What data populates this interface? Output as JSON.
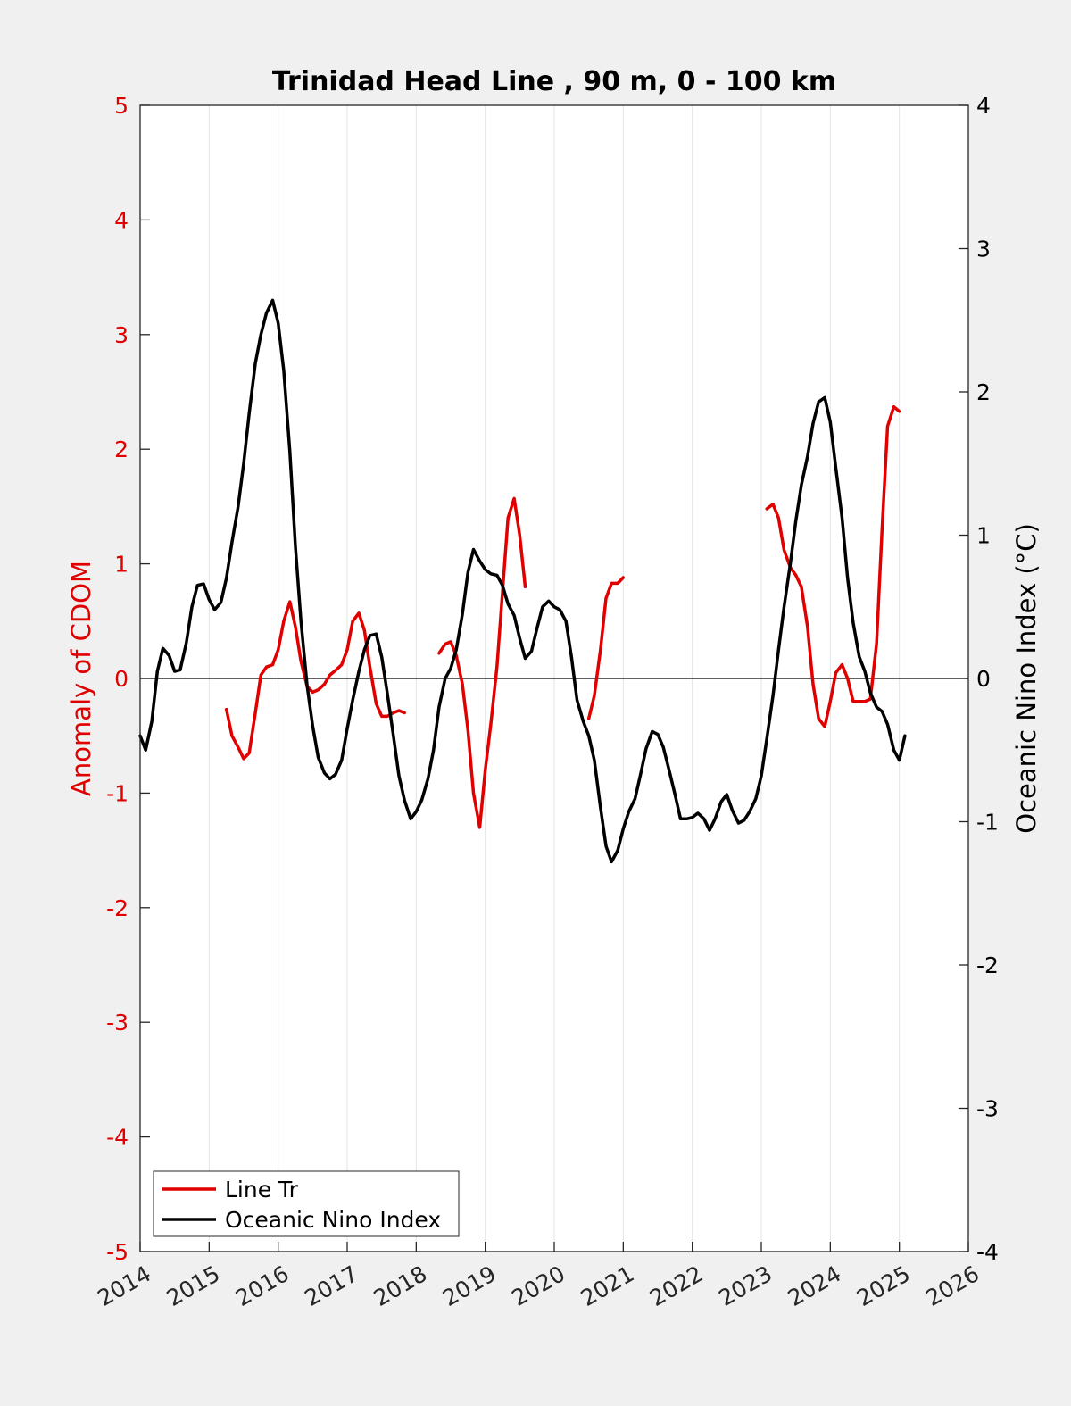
{
  "chart_data": {
    "type": "line",
    "title": "Trinidad Head Line , 90 m, 0 - 100 km",
    "ylabel_left": "Anomaly of CDOM",
    "ylabel_right": "Oceanic Nino Index (°C)",
    "xlim": [
      2014,
      2026
    ],
    "ylim_left": [
      -5,
      5
    ],
    "ylim_right": [
      -4,
      4
    ],
    "x_ticks": [
      "2014",
      "2015",
      "2016",
      "2017",
      "2018",
      "2019",
      "2020",
      "2021",
      "2022",
      "2023",
      "2024",
      "2025",
      "2026"
    ],
    "y_left_ticks": [
      "-5",
      "-4",
      "-3",
      "-2",
      "-1",
      "0",
      "1",
      "2",
      "3",
      "4",
      "5"
    ],
    "y_right_ticks": [
      "-4",
      "-3",
      "-2",
      "-1",
      "0",
      "1",
      "2",
      "3",
      "4"
    ],
    "grid": "vertical",
    "zero_line": true,
    "legend_position": "bottom-left",
    "colors": {
      "line_tr": "#e00000",
      "oni": "#000000",
      "left_axis": "#e00000",
      "right_axis": "#000000"
    },
    "series": [
      {
        "name": "Line Tr",
        "axis": "left",
        "segments": [
          [
            [
              2015.25,
              -0.27
            ],
            [
              2015.33,
              -0.5
            ],
            [
              2015.42,
              -0.6
            ],
            [
              2015.5,
              -0.7
            ],
            [
              2015.58,
              -0.65
            ],
            [
              2015.67,
              -0.3
            ],
            [
              2015.75,
              0.03
            ],
            [
              2015.83,
              0.1
            ],
            [
              2015.92,
              0.12
            ],
            [
              2016.0,
              0.25
            ],
            [
              2016.08,
              0.5
            ],
            [
              2016.17,
              0.67
            ],
            [
              2016.25,
              0.45
            ],
            [
              2016.33,
              0.15
            ],
            [
              2016.42,
              -0.07
            ],
            [
              2016.5,
              -0.12
            ],
            [
              2016.58,
              -0.1
            ],
            [
              2016.67,
              -0.05
            ],
            [
              2016.75,
              0.03
            ],
            [
              2016.83,
              0.07
            ],
            [
              2016.92,
              0.12
            ],
            [
              2017.0,
              0.25
            ],
            [
              2017.08,
              0.5
            ],
            [
              2017.17,
              0.57
            ],
            [
              2017.25,
              0.42
            ],
            [
              2017.33,
              0.1
            ],
            [
              2017.42,
              -0.22
            ],
            [
              2017.5,
              -0.33
            ],
            [
              2017.58,
              -0.33
            ],
            [
              2017.67,
              -0.3
            ],
            [
              2017.75,
              -0.28
            ],
            [
              2017.83,
              -0.3
            ]
          ],
          [
            [
              2018.33,
              0.22
            ],
            [
              2018.42,
              0.3
            ],
            [
              2018.5,
              0.32
            ],
            [
              2018.58,
              0.2
            ],
            [
              2018.67,
              -0.05
            ],
            [
              2018.75,
              -0.45
            ],
            [
              2018.83,
              -1.0
            ],
            [
              2018.92,
              -1.3
            ],
            [
              2019.0,
              -0.8
            ],
            [
              2019.08,
              -0.4
            ],
            [
              2019.17,
              0.1
            ],
            [
              2019.25,
              0.75
            ],
            [
              2019.33,
              1.4
            ],
            [
              2019.42,
              1.57
            ],
            [
              2019.5,
              1.25
            ],
            [
              2019.58,
              0.8
            ]
          ],
          [
            [
              2020.5,
              -0.35
            ],
            [
              2020.58,
              -0.15
            ],
            [
              2020.67,
              0.25
            ],
            [
              2020.75,
              0.7
            ],
            [
              2020.83,
              0.83
            ],
            [
              2020.92,
              0.83
            ],
            [
              2021.0,
              0.88
            ]
          ],
          [
            [
              2023.08,
              1.48
            ],
            [
              2023.17,
              1.52
            ],
            [
              2023.25,
              1.4
            ],
            [
              2023.33,
              1.12
            ],
            [
              2023.42,
              0.97
            ],
            [
              2023.5,
              0.9
            ],
            [
              2023.58,
              0.8
            ],
            [
              2023.67,
              0.45
            ],
            [
              2023.75,
              -0.05
            ],
            [
              2023.83,
              -0.35
            ],
            [
              2023.92,
              -0.42
            ],
            [
              2024.0,
              -0.2
            ],
            [
              2024.08,
              0.05
            ],
            [
              2024.17,
              0.12
            ],
            [
              2024.25,
              0.0
            ],
            [
              2024.33,
              -0.2
            ],
            [
              2024.42,
              -0.2
            ],
            [
              2024.5,
              -0.2
            ],
            [
              2024.58,
              -0.18
            ],
            [
              2024.67,
              0.3
            ],
            [
              2024.75,
              1.3
            ],
            [
              2024.83,
              2.2
            ],
            [
              2024.92,
              2.37
            ],
            [
              2025.0,
              2.33
            ]
          ]
        ]
      },
      {
        "name": "Oceanic Nino Index",
        "axis": "right",
        "segments": [
          [
            [
              2014.0,
              -0.4
            ],
            [
              2014.08,
              -0.5
            ],
            [
              2014.17,
              -0.3
            ],
            [
              2014.25,
              0.05
            ],
            [
              2014.33,
              0.21
            ],
            [
              2014.42,
              0.16
            ],
            [
              2014.5,
              0.05
            ],
            [
              2014.58,
              0.06
            ],
            [
              2014.67,
              0.25
            ],
            [
              2014.75,
              0.5
            ],
            [
              2014.83,
              0.65
            ],
            [
              2014.92,
              0.66
            ],
            [
              2015.0,
              0.55
            ],
            [
              2015.08,
              0.48
            ],
            [
              2015.17,
              0.53
            ],
            [
              2015.25,
              0.7
            ],
            [
              2015.33,
              0.95
            ],
            [
              2015.42,
              1.2
            ],
            [
              2015.5,
              1.5
            ],
            [
              2015.58,
              1.85
            ],
            [
              2015.67,
              2.2
            ],
            [
              2015.75,
              2.4
            ],
            [
              2015.83,
              2.55
            ],
            [
              2015.92,
              2.64
            ],
            [
              2016.0,
              2.48
            ],
            [
              2016.08,
              2.15
            ],
            [
              2016.17,
              1.58
            ],
            [
              2016.25,
              0.92
            ],
            [
              2016.33,
              0.4
            ],
            [
              2016.42,
              -0.05
            ],
            [
              2016.5,
              -0.33
            ],
            [
              2016.58,
              -0.55
            ],
            [
              2016.67,
              -0.66
            ],
            [
              2016.75,
              -0.7
            ],
            [
              2016.83,
              -0.67
            ],
            [
              2016.92,
              -0.57
            ],
            [
              2017.0,
              -0.35
            ],
            [
              2017.08,
              -0.15
            ],
            [
              2017.17,
              0.05
            ],
            [
              2017.25,
              0.2
            ],
            [
              2017.33,
              0.3
            ],
            [
              2017.42,
              0.31
            ],
            [
              2017.5,
              0.15
            ],
            [
              2017.58,
              -0.1
            ],
            [
              2017.67,
              -0.4
            ],
            [
              2017.75,
              -0.68
            ],
            [
              2017.83,
              -0.85
            ],
            [
              2017.92,
              -0.98
            ],
            [
              2018.0,
              -0.93
            ],
            [
              2018.08,
              -0.85
            ],
            [
              2018.17,
              -0.7
            ],
            [
              2018.25,
              -0.5
            ],
            [
              2018.33,
              -0.2
            ],
            [
              2018.42,
              0.0
            ],
            [
              2018.5,
              0.07
            ],
            [
              2018.58,
              0.2
            ],
            [
              2018.67,
              0.45
            ],
            [
              2018.75,
              0.74
            ],
            [
              2018.83,
              0.9
            ],
            [
              2018.92,
              0.82
            ],
            [
              2019.0,
              0.76
            ],
            [
              2019.08,
              0.73
            ],
            [
              2019.17,
              0.72
            ],
            [
              2019.25,
              0.65
            ],
            [
              2019.33,
              0.52
            ],
            [
              2019.42,
              0.44
            ],
            [
              2019.5,
              0.28
            ],
            [
              2019.58,
              0.14
            ],
            [
              2019.67,
              0.19
            ],
            [
              2019.75,
              0.35
            ],
            [
              2019.83,
              0.5
            ],
            [
              2019.92,
              0.54
            ],
            [
              2020.0,
              0.5
            ],
            [
              2020.08,
              0.48
            ],
            [
              2020.17,
              0.4
            ],
            [
              2020.25,
              0.15
            ],
            [
              2020.33,
              -0.15
            ],
            [
              2020.42,
              -0.3
            ],
            [
              2020.5,
              -0.4
            ],
            [
              2020.58,
              -0.57
            ],
            [
              2020.67,
              -0.9
            ],
            [
              2020.75,
              -1.17
            ],
            [
              2020.83,
              -1.28
            ],
            [
              2020.92,
              -1.2
            ],
            [
              2021.0,
              -1.05
            ],
            [
              2021.08,
              -0.93
            ],
            [
              2021.17,
              -0.84
            ],
            [
              2021.25,
              -0.67
            ],
            [
              2021.33,
              -0.49
            ],
            [
              2021.42,
              -0.37
            ],
            [
              2021.5,
              -0.39
            ],
            [
              2021.58,
              -0.48
            ],
            [
              2021.67,
              -0.65
            ],
            [
              2021.75,
              -0.81
            ],
            [
              2021.83,
              -0.98
            ],
            [
              2021.92,
              -0.98
            ],
            [
              2022.0,
              -0.97
            ],
            [
              2022.08,
              -0.94
            ],
            [
              2022.17,
              -0.98
            ],
            [
              2022.25,
              -1.06
            ],
            [
              2022.33,
              -0.98
            ],
            [
              2022.42,
              -0.86
            ],
            [
              2022.5,
              -0.81
            ],
            [
              2022.58,
              -0.92
            ],
            [
              2022.67,
              -1.01
            ],
            [
              2022.75,
              -0.99
            ],
            [
              2022.83,
              -0.93
            ],
            [
              2022.92,
              -0.84
            ],
            [
              2023.0,
              -0.68
            ],
            [
              2023.08,
              -0.42
            ],
            [
              2023.17,
              -0.12
            ],
            [
              2023.25,
              0.2
            ],
            [
              2023.33,
              0.5
            ],
            [
              2023.42,
              0.8
            ],
            [
              2023.5,
              1.1
            ],
            [
              2023.58,
              1.35
            ],
            [
              2023.67,
              1.55
            ],
            [
              2023.75,
              1.78
            ],
            [
              2023.83,
              1.93
            ],
            [
              2023.92,
              1.96
            ],
            [
              2024.0,
              1.79
            ],
            [
              2024.08,
              1.47
            ],
            [
              2024.17,
              1.12
            ],
            [
              2024.25,
              0.7
            ],
            [
              2024.33,
              0.39
            ],
            [
              2024.42,
              0.15
            ],
            [
              2024.5,
              0.05
            ],
            [
              2024.58,
              -0.1
            ],
            [
              2024.67,
              -0.2
            ],
            [
              2024.75,
              -0.23
            ],
            [
              2024.83,
              -0.32
            ],
            [
              2024.92,
              -0.5
            ],
            [
              2025.0,
              -0.57
            ],
            [
              2025.08,
              -0.4
            ]
          ]
        ]
      }
    ]
  }
}
